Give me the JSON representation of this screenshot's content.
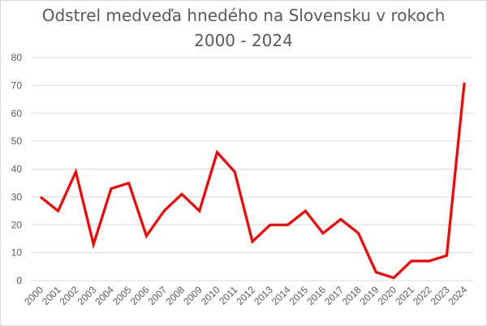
{
  "chart_data": {
    "type": "line",
    "title": "Odstrel medveďa hnedého na Slovensku v rokoch 2000 - 2024",
    "title_lines": [
      "Odstrel medveďa hnedého na Slovensku v rokoch",
      "2000 - 2024"
    ],
    "xlabel": "",
    "ylabel": "",
    "ylim": [
      0,
      80
    ],
    "yticks": [
      0,
      10,
      20,
      30,
      40,
      50,
      60,
      70,
      80
    ],
    "grid": true,
    "legend": null,
    "categories": [
      "2000",
      "2001",
      "2002",
      "2003",
      "2004",
      "2005",
      "2006",
      "2007",
      "2008",
      "2009",
      "2010",
      "2011",
      "2012",
      "2013",
      "2014",
      "2015",
      "2016",
      "2017",
      "2018",
      "2019",
      "2020",
      "2021",
      "2022",
      "2023",
      "2024"
    ],
    "series": [
      {
        "name": "Odstrel",
        "color": "#ff0000",
        "values": [
          30,
          25,
          39,
          13,
          33,
          35,
          16,
          25,
          31,
          25,
          46,
          39,
          14,
          20,
          20,
          25,
          17,
          22,
          17,
          3,
          1,
          7,
          7,
          9,
          71
        ]
      }
    ]
  }
}
